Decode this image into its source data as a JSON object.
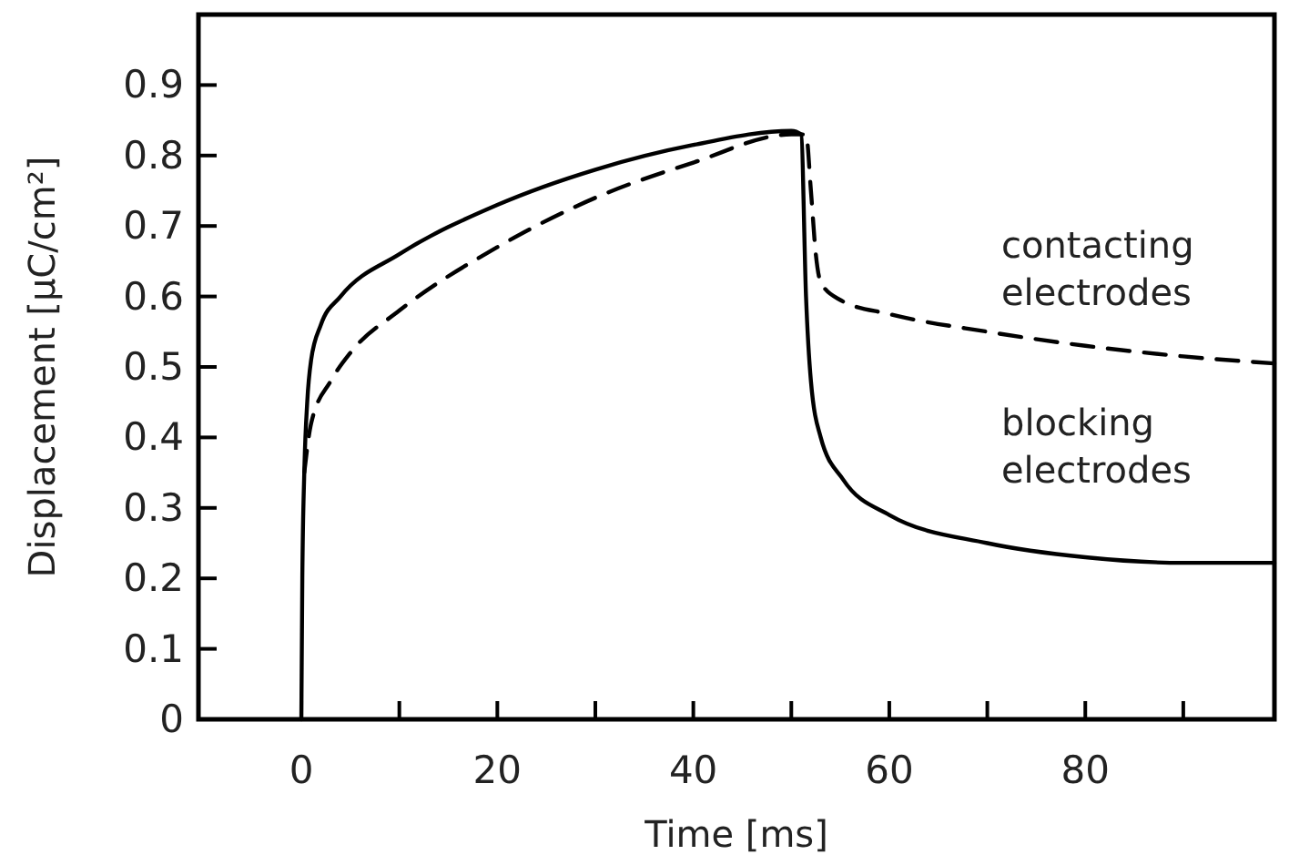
{
  "chart_data": {
    "type": "line",
    "xlabel": "Time [ms]",
    "ylabel": "Displacement [µC/cm²]",
    "xlim": [
      -10.5,
      99.3
    ],
    "ylim": [
      0,
      1
    ],
    "xticks": [
      0,
      {
        "value": 10,
        "label": null
      },
      20,
      {
        "value": 30,
        "label": null
      },
      40,
      {
        "value": 50,
        "label": null
      },
      60,
      {
        "value": 70,
        "label": null
      },
      80,
      {
        "value": 90,
        "label": null
      }
    ],
    "yticks": [
      0,
      0.1,
      0.2,
      0.3,
      0.4,
      0.5,
      0.6,
      0.7,
      0.8,
      0.9
    ],
    "grid": false,
    "legend": false,
    "series": [
      {
        "name": "contacting electrodes",
        "color": "#000000",
        "line_style": "dashed",
        "x": [
          0.3,
          1,
          3,
          5,
          10,
          20,
          30,
          40,
          50,
          51.5,
          52,
          52.5,
          53,
          55,
          60,
          70,
          80,
          90,
          99.3
        ],
        "values": [
          0.35,
          0.42,
          0.48,
          0.52,
          0.58,
          0.67,
          0.74,
          0.79,
          0.83,
          0.83,
          0.75,
          0.66,
          0.62,
          0.595,
          0.575,
          0.55,
          0.53,
          0.515,
          0.505
        ]
      },
      {
        "name": "blocking electrodes",
        "color": "#000000",
        "line_style": "solid",
        "x": [
          0,
          0.1,
          0.3,
          0.6,
          1,
          2,
          4,
          10,
          20,
          30,
          40,
          50,
          51,
          51.5,
          52,
          53,
          55.3,
          60,
          70,
          80,
          90,
          99.3
        ],
        "values": [
          0,
          0.2,
          0.35,
          0.45,
          0.51,
          0.56,
          0.6,
          0.66,
          0.73,
          0.78,
          0.815,
          0.835,
          0.83,
          0.6,
          0.48,
          0.4,
          0.34,
          0.29,
          0.25,
          0.23,
          0.222,
          0.222
        ]
      }
    ]
  }
}
